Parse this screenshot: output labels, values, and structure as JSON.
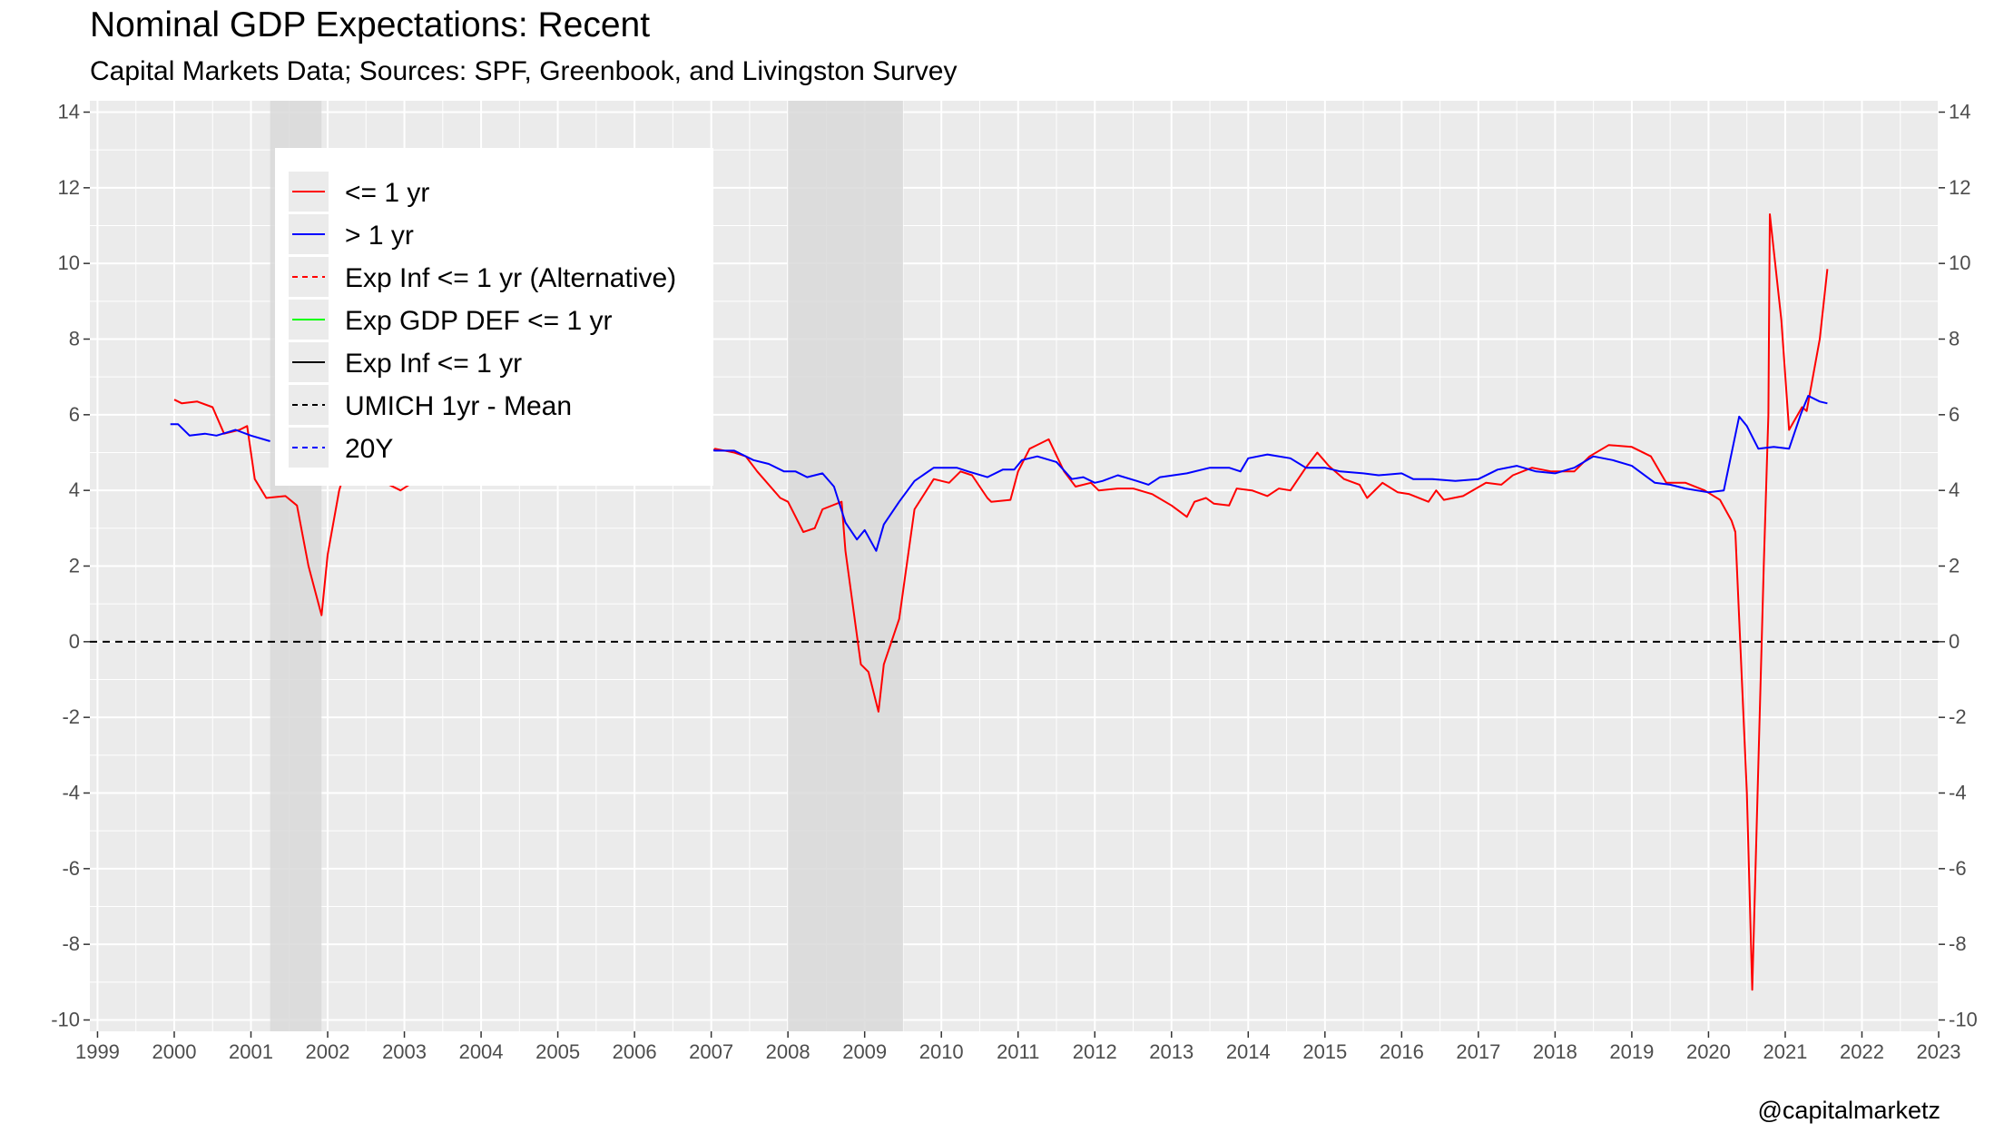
{
  "title": "Nominal GDP Expectations: Recent",
  "subtitle": "Capital Markets Data; Sources: SPF, Greenbook, and Livingston Survey",
  "caption": "@capitalmarketz",
  "colors": {
    "panel": "#ebebeb",
    "grid": "#ffffff",
    "recession": "#d9d9d9",
    "short": "#ff0000",
    "long": "#0000ff",
    "zero_line": "#000000"
  },
  "legend": [
    {
      "label": "<= 1 yr",
      "color": "#ff0000",
      "dash": "solid"
    },
    {
      "label": "> 1 yr",
      "color": "#0000ff",
      "dash": "solid"
    },
    {
      "label": "Exp Inf <= 1 yr (Alternative)",
      "color": "#ff0000",
      "dash": "dashed"
    },
    {
      "label": "Exp GDP DEF <= 1 yr",
      "color": "#00ff00",
      "dash": "solid"
    },
    {
      "label": "Exp Inf <= 1 yr",
      "color": "#000000",
      "dash": "solid"
    },
    {
      "label": "UMICH 1yr - Mean",
      "color": "#000000",
      "dash": "dashed"
    },
    {
      "label": "20Y",
      "color": "#0000ff",
      "dash": "dashed"
    }
  ],
  "chart_data": {
    "type": "line",
    "x_ticks": [
      "1999",
      "2000",
      "2001",
      "2002",
      "2003",
      "2004",
      "2005",
      "2006",
      "2007",
      "2008",
      "2009",
      "2010",
      "2011",
      "2012",
      "2013",
      "2014",
      "2015",
      "2016",
      "2017",
      "2018",
      "2019",
      "2020",
      "2021",
      "2022",
      "2023"
    ],
    "y_ticks": [
      "14",
      "12",
      "10",
      "8",
      "6",
      "4",
      "2",
      "0",
      "-2",
      "-4",
      "-6",
      "-8",
      "-10"
    ],
    "xlim": [
      1998.9,
      2023.0
    ],
    "ylim": [
      -10.3,
      14.3
    ],
    "grid": true,
    "legend_position": "top-left inside",
    "reference_line": {
      "y": 0,
      "style": "dashed"
    },
    "recessions": [
      [
        2001.25,
        2001.92
      ],
      [
        2008.0,
        2009.5
      ]
    ],
    "series": [
      {
        "name": "<= 1 yr",
        "color": "#ff0000",
        "points": [
          [
            2000.0,
            6.4
          ],
          [
            2000.1,
            6.3
          ],
          [
            2000.3,
            6.35
          ],
          [
            2000.5,
            6.2
          ],
          [
            2000.65,
            5.5
          ],
          [
            2000.85,
            5.6
          ],
          [
            2000.95,
            5.7
          ],
          [
            2001.05,
            4.3
          ],
          [
            2001.2,
            3.8
          ],
          [
            2001.45,
            3.85
          ],
          [
            2001.6,
            3.6
          ],
          [
            2001.75,
            2.0
          ],
          [
            2001.92,
            0.7
          ],
          [
            2002.0,
            2.3
          ],
          [
            2002.15,
            4.0
          ],
          [
            2002.3,
            5.0
          ],
          [
            2002.5,
            4.5
          ],
          [
            2002.75,
            4.2
          ],
          [
            2002.95,
            4.0
          ],
          [
            2003.1,
            4.2
          ],
          [
            2006.95,
            4.9
          ],
          [
            2007.05,
            5.1
          ],
          [
            2007.3,
            5.0
          ],
          [
            2007.45,
            4.9
          ],
          [
            2007.6,
            4.5
          ],
          [
            2007.9,
            3.8
          ],
          [
            2008.0,
            3.7
          ],
          [
            2008.2,
            2.9
          ],
          [
            2008.35,
            3.0
          ],
          [
            2008.45,
            3.5
          ],
          [
            2008.7,
            3.7
          ],
          [
            2008.75,
            2.4
          ],
          [
            2008.95,
            -0.6
          ],
          [
            2009.05,
            -0.8
          ],
          [
            2009.18,
            -1.85
          ],
          [
            2009.25,
            -0.6
          ],
          [
            2009.45,
            0.6
          ],
          [
            2009.65,
            3.5
          ],
          [
            2009.9,
            4.3
          ],
          [
            2010.1,
            4.2
          ],
          [
            2010.25,
            4.5
          ],
          [
            2010.4,
            4.4
          ],
          [
            2010.6,
            3.8
          ],
          [
            2010.65,
            3.7
          ],
          [
            2010.9,
            3.75
          ],
          [
            2011.0,
            4.5
          ],
          [
            2011.15,
            5.1
          ],
          [
            2011.4,
            5.35
          ],
          [
            2011.6,
            4.5
          ],
          [
            2011.75,
            4.1
          ],
          [
            2011.95,
            4.2
          ],
          [
            2012.05,
            4.0
          ],
          [
            2012.3,
            4.05
          ],
          [
            2012.5,
            4.05
          ],
          [
            2012.75,
            3.9
          ],
          [
            2013.0,
            3.6
          ],
          [
            2013.2,
            3.3
          ],
          [
            2013.3,
            3.7
          ],
          [
            2013.45,
            3.8
          ],
          [
            2013.55,
            3.65
          ],
          [
            2013.75,
            3.6
          ],
          [
            2013.85,
            4.05
          ],
          [
            2014.05,
            4.0
          ],
          [
            2014.25,
            3.85
          ],
          [
            2014.4,
            4.05
          ],
          [
            2014.55,
            4.0
          ],
          [
            2014.75,
            4.6
          ],
          [
            2014.9,
            5.0
          ],
          [
            2015.05,
            4.65
          ],
          [
            2015.25,
            4.3
          ],
          [
            2015.45,
            4.15
          ],
          [
            2015.55,
            3.8
          ],
          [
            2015.75,
            4.2
          ],
          [
            2015.95,
            3.95
          ],
          [
            2016.1,
            3.9
          ],
          [
            2016.35,
            3.7
          ],
          [
            2016.45,
            4.0
          ],
          [
            2016.55,
            3.75
          ],
          [
            2016.8,
            3.85
          ],
          [
            2017.1,
            4.2
          ],
          [
            2017.3,
            4.15
          ],
          [
            2017.45,
            4.4
          ],
          [
            2017.7,
            4.6
          ],
          [
            2017.95,
            4.5
          ],
          [
            2018.25,
            4.5
          ],
          [
            2018.45,
            4.9
          ],
          [
            2018.7,
            5.2
          ],
          [
            2019.0,
            5.15
          ],
          [
            2019.25,
            4.9
          ],
          [
            2019.45,
            4.2
          ],
          [
            2019.7,
            4.2
          ],
          [
            2019.95,
            4.0
          ],
          [
            2020.15,
            3.75
          ],
          [
            2020.3,
            3.2
          ],
          [
            2020.35,
            2.9
          ],
          [
            2020.5,
            -4.0
          ],
          [
            2020.57,
            -9.2
          ],
          [
            2020.72,
            2.0
          ],
          [
            2020.78,
            6.0
          ],
          [
            2020.8,
            11.3
          ],
          [
            2020.95,
            8.5
          ],
          [
            2021.05,
            5.6
          ],
          [
            2021.22,
            6.2
          ],
          [
            2021.28,
            6.1
          ],
          [
            2021.45,
            8.0
          ],
          [
            2021.55,
            9.85
          ]
        ]
      },
      {
        "name": "> 1 yr",
        "color": "#0000ff",
        "points": [
          [
            1999.95,
            5.75
          ],
          [
            2000.05,
            5.75
          ],
          [
            2000.2,
            5.45
          ],
          [
            2000.4,
            5.5
          ],
          [
            2000.55,
            5.45
          ],
          [
            2000.8,
            5.6
          ],
          [
            2001.0,
            5.45
          ],
          [
            2001.25,
            5.3
          ],
          [
            2006.95,
            5.1
          ],
          [
            2007.05,
            5.05
          ],
          [
            2007.3,
            5.05
          ],
          [
            2007.55,
            4.8
          ],
          [
            2007.75,
            4.7
          ],
          [
            2007.95,
            4.5
          ],
          [
            2008.1,
            4.5
          ],
          [
            2008.25,
            4.35
          ],
          [
            2008.45,
            4.45
          ],
          [
            2008.6,
            4.1
          ],
          [
            2008.75,
            3.15
          ],
          [
            2008.9,
            2.7
          ],
          [
            2009.0,
            2.95
          ],
          [
            2009.15,
            2.4
          ],
          [
            2009.25,
            3.1
          ],
          [
            2009.45,
            3.7
          ],
          [
            2009.65,
            4.25
          ],
          [
            2009.9,
            4.6
          ],
          [
            2010.05,
            4.6
          ],
          [
            2010.2,
            4.6
          ],
          [
            2010.35,
            4.5
          ],
          [
            2010.6,
            4.35
          ],
          [
            2010.8,
            4.55
          ],
          [
            2010.95,
            4.55
          ],
          [
            2011.05,
            4.8
          ],
          [
            2011.25,
            4.9
          ],
          [
            2011.5,
            4.75
          ],
          [
            2011.7,
            4.3
          ],
          [
            2011.85,
            4.35
          ],
          [
            2012.0,
            4.2
          ],
          [
            2012.1,
            4.25
          ],
          [
            2012.3,
            4.4
          ],
          [
            2012.55,
            4.25
          ],
          [
            2012.7,
            4.15
          ],
          [
            2012.85,
            4.35
          ],
          [
            2013.2,
            4.45
          ],
          [
            2013.5,
            4.6
          ],
          [
            2013.75,
            4.6
          ],
          [
            2013.9,
            4.5
          ],
          [
            2014.0,
            4.85
          ],
          [
            2014.25,
            4.95
          ],
          [
            2014.55,
            4.85
          ],
          [
            2014.75,
            4.6
          ],
          [
            2015.0,
            4.6
          ],
          [
            2015.2,
            4.5
          ],
          [
            2015.5,
            4.45
          ],
          [
            2015.7,
            4.4
          ],
          [
            2016.0,
            4.45
          ],
          [
            2016.15,
            4.3
          ],
          [
            2016.4,
            4.3
          ],
          [
            2016.7,
            4.25
          ],
          [
            2017.0,
            4.3
          ],
          [
            2017.25,
            4.55
          ],
          [
            2017.5,
            4.65
          ],
          [
            2017.75,
            4.5
          ],
          [
            2018.0,
            4.45
          ],
          [
            2018.25,
            4.6
          ],
          [
            2018.5,
            4.9
          ],
          [
            2018.75,
            4.8
          ],
          [
            2019.0,
            4.65
          ],
          [
            2019.3,
            4.2
          ],
          [
            2019.5,
            4.15
          ],
          [
            2019.7,
            4.05
          ],
          [
            2020.0,
            3.95
          ],
          [
            2020.2,
            4.0
          ],
          [
            2020.4,
            5.95
          ],
          [
            2020.5,
            5.7
          ],
          [
            2020.65,
            5.1
          ],
          [
            2020.85,
            5.15
          ],
          [
            2021.05,
            5.1
          ],
          [
            2021.2,
            6.0
          ],
          [
            2021.3,
            6.5
          ],
          [
            2021.45,
            6.35
          ],
          [
            2021.55,
            6.3
          ]
        ]
      }
    ]
  }
}
